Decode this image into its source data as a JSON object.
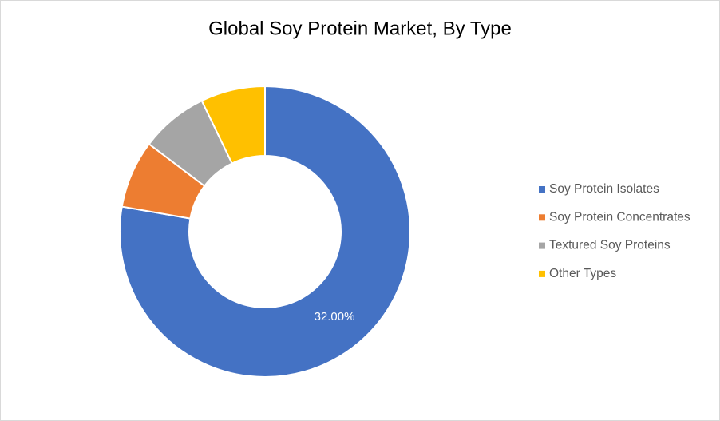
{
  "chart_data": {
    "type": "donut",
    "title": "Global Soy Protein Market, By Type",
    "series": [
      {
        "name": "Soy Protein Isolates",
        "color": "#4472c4",
        "values": [
          32
        ],
        "value_labels": [
          "32.00%"
        ]
      },
      {
        "name": "Soy Protein Concentrates",
        "color": "#ed7d31",
        "values": [
          3.1
        ]
      },
      {
        "name": "Textured Soy Proteins",
        "color": "#a5a5a5",
        "values": [
          3.1
        ]
      },
      {
        "name": "Other Types",
        "color": "#ffc000",
        "values": [
          2.95
        ]
      }
    ],
    "legend": "right"
  }
}
